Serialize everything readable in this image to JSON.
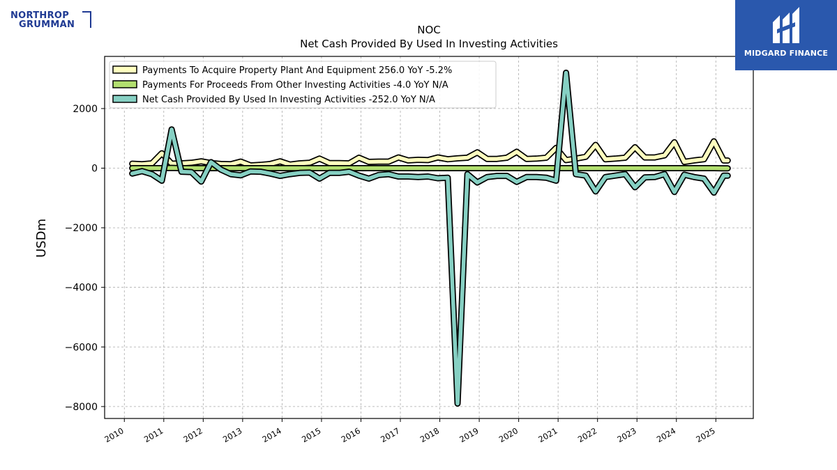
{
  "brand": {
    "left_line1": "NORTHROP",
    "left_line2": "GRUMMAN",
    "right_text": "MIDGARD FINANCE"
  },
  "colors": {
    "ppe": "#ffffbf",
    "other": "#b2df6f",
    "net": "#86d0c3",
    "outline": "#000000",
    "grid": "#aaaaaa"
  },
  "chart_data": {
    "type": "line",
    "title": "NOC",
    "subtitle": "Net Cash Provided By Used In Investing Activities",
    "ylabel": "USDm",
    "xlabel": "",
    "ylim": [
      -8400,
      3750
    ],
    "xlim": [
      2009.5,
      2025.95
    ],
    "yticks": [
      -8000,
      -6000,
      -4000,
      -2000,
      0,
      2000
    ],
    "ytick_labels": [
      "−8000",
      "−6000",
      "−4000",
      "−2000",
      "0",
      "2000"
    ],
    "xticks": [
      2010,
      2011,
      2012,
      2013,
      2014,
      2015,
      2016,
      2017,
      2018,
      2019,
      2020,
      2021,
      2022,
      2023,
      2024,
      2025
    ],
    "xtick_labels": [
      "2010",
      "2011",
      "2012",
      "2013",
      "2014",
      "2015",
      "2016",
      "2017",
      "2018",
      "2019",
      "2020",
      "2021",
      "2022",
      "2023",
      "2024",
      "2025"
    ],
    "grid": true,
    "legend_position": "top-left",
    "x": [
      2010.2,
      2010.45,
      2010.7,
      2010.95,
      2011.2,
      2011.45,
      2011.7,
      2011.95,
      2012.2,
      2012.45,
      2012.7,
      2012.95,
      2013.2,
      2013.45,
      2013.7,
      2013.95,
      2014.2,
      2014.45,
      2014.7,
      2014.95,
      2015.2,
      2015.45,
      2015.7,
      2015.95,
      2016.2,
      2016.45,
      2016.7,
      2016.95,
      2017.2,
      2017.45,
      2017.7,
      2017.95,
      2018.2,
      2018.45,
      2018.7,
      2018.95,
      2019.2,
      2019.45,
      2019.7,
      2019.95,
      2020.2,
      2020.45,
      2020.7,
      2020.95,
      2021.2,
      2021.45,
      2021.7,
      2021.95,
      2022.2,
      2022.45,
      2022.7,
      2022.95,
      2023.2,
      2023.45,
      2023.7,
      2023.95,
      2024.2,
      2024.45,
      2024.7,
      2024.95,
      2025.2,
      2025.3
    ],
    "series": [
      {
        "name": "Payments To Acquire Property Plant And Equipment",
        "legend": "Payments To Acquire Property Plant And Equipment  256.0 YoY -5.2%",
        "values": [
          150,
          130,
          160,
          500,
          150,
          160,
          180,
          230,
          170,
          140,
          130,
          220,
          90,
          110,
          140,
          230,
          120,
          160,
          180,
          320,
          170,
          170,
          160,
          350,
          210,
          220,
          220,
          360,
          260,
          280,
          270,
          360,
          300,
          330,
          350,
          530,
          310,
          310,
          350,
          550,
          310,
          320,
          350,
          680,
          270,
          320,
          380,
          780,
          300,
          320,
          350,
          700,
          360,
          360,
          430,
          870,
          210,
          260,
          300,
          900,
          256,
          256
        ]
      },
      {
        "name": "Payments For Proceeds From Other Investing Activities",
        "legend": "Payments For Proceeds From Other Investing Activities  -4.0 YoY N/A",
        "values": [
          0,
          0,
          0,
          0,
          10,
          0,
          0,
          0,
          0,
          0,
          0,
          0,
          0,
          0,
          0,
          0,
          0,
          0,
          0,
          0,
          0,
          0,
          0,
          0,
          0,
          0,
          0,
          0,
          0,
          0,
          0,
          0,
          0,
          0,
          0,
          0,
          0,
          0,
          0,
          0,
          0,
          0,
          0,
          0,
          0,
          0,
          0,
          0,
          0,
          0,
          0,
          0,
          0,
          0,
          0,
          0,
          0,
          0,
          0,
          0,
          -4,
          -4
        ]
      },
      {
        "name": "Net Cash Provided By Used In Investing Activities",
        "legend": "Net Cash Provided By Used In Investing Activities  -252.0 YoY N/A",
        "values": [
          -180,
          -100,
          -200,
          -420,
          1300,
          -120,
          -130,
          -450,
          200,
          -50,
          -200,
          -240,
          -110,
          -120,
          -180,
          -260,
          -200,
          -160,
          -150,
          -350,
          -160,
          -160,
          -120,
          -250,
          -350,
          -230,
          -200,
          -280,
          -280,
          -300,
          -280,
          -340,
          -320,
          -7900,
          -200,
          -480,
          -300,
          -260,
          -260,
          -460,
          -300,
          -300,
          -320,
          -420,
          3200,
          -200,
          -250,
          -780,
          -300,
          -250,
          -200,
          -640,
          -310,
          -300,
          -200,
          -800,
          -220,
          -300,
          -350,
          -820,
          -252,
          -252
        ]
      }
    ]
  }
}
